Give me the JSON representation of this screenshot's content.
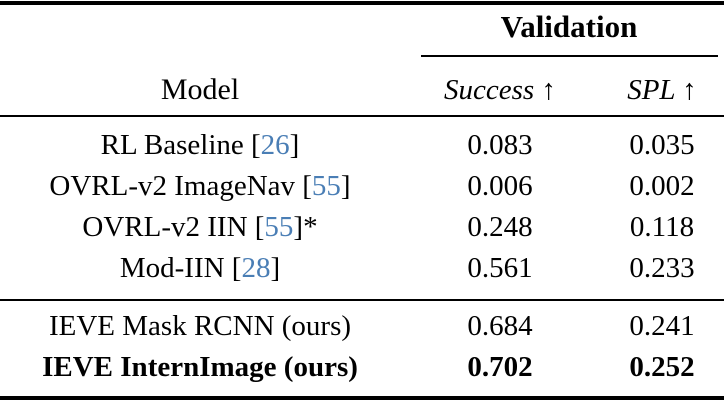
{
  "table": {
    "group_header": "Validation",
    "columns": {
      "model": "Model",
      "success": "Success ↑",
      "spl": "SPL ↑"
    },
    "rows": [
      {
        "pre": "RL Baseline [",
        "cite": "26",
        "post": "]",
        "success": "0.083",
        "spl": "0.035"
      },
      {
        "pre": "OVRL-v2 ImageNav [",
        "cite": "55",
        "post": "]",
        "success": "0.006",
        "spl": "0.002"
      },
      {
        "pre": "OVRL-v2 IIN [",
        "cite": "55",
        "post": "]*",
        "success": "0.248",
        "spl": "0.118"
      },
      {
        "pre": "Mod-IIN [",
        "cite": "28",
        "post": "]",
        "success": "0.561",
        "spl": "0.233"
      },
      {
        "pre": "IEVE Mask RCNN (ours)",
        "cite": "",
        "post": "",
        "success": "0.684",
        "spl": "0.241"
      },
      {
        "pre": "IEVE InternImage (ours)",
        "cite": "",
        "post": "",
        "success": "0.702",
        "spl": "0.252"
      }
    ],
    "colors": {
      "citation_blue": "#4a7eb5",
      "text": "#000000",
      "rule": "#000000",
      "background": "#ffffff"
    }
  }
}
